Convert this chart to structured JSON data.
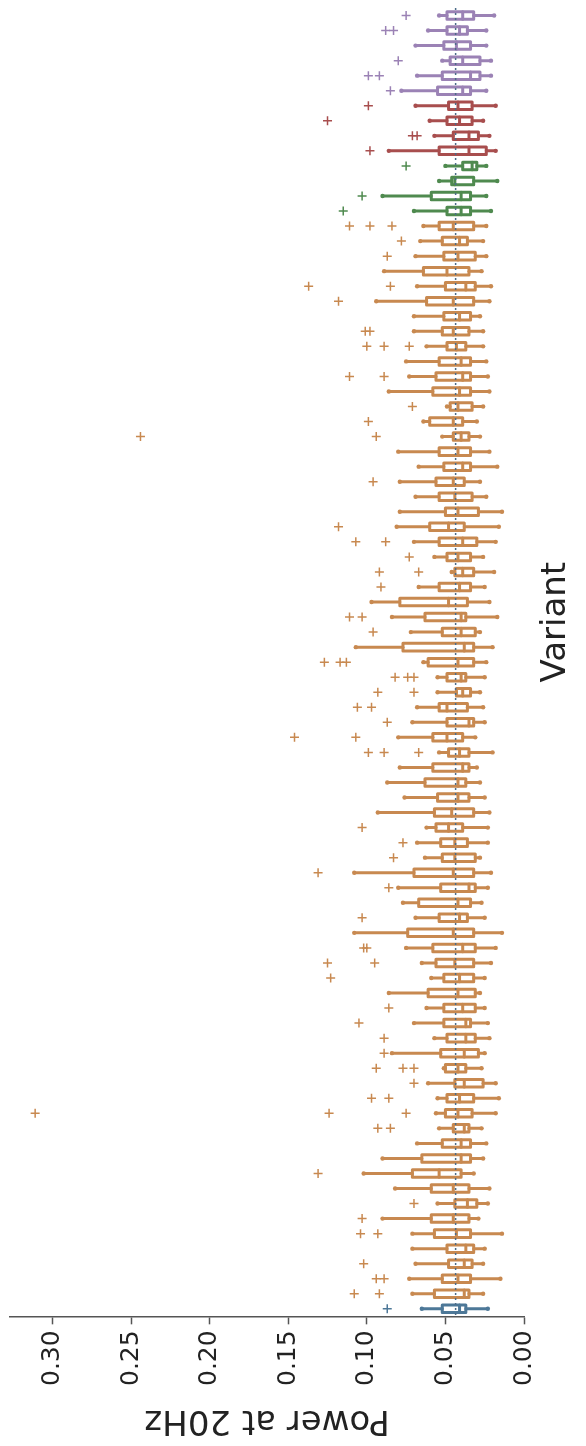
{
  "chart_data": {
    "type": "box",
    "orientation": "horizontal",
    "xlabel": "Power at 20Hz",
    "ylabel": "Variant",
    "tick_labels": "x",
    "marker": "cross",
    "categories": [
      null,
      null,
      null,
      null,
      null,
      null,
      null,
      null,
      null,
      null,
      null,
      null,
      null,
      null,
      null,
      null,
      null,
      null,
      null,
      null,
      null,
      null,
      null,
      null,
      null,
      null,
      null,
      null,
      null,
      null,
      null,
      null,
      null,
      null,
      null,
      null,
      null,
      null,
      null,
      null,
      null,
      null,
      null,
      null,
      null,
      null,
      null,
      null,
      null,
      null,
      null,
      null,
      null,
      null,
      null,
      null,
      null,
      null,
      null,
      null,
      null,
      null,
      null,
      null,
      null,
      null,
      null,
      null,
      null,
      null,
      null,
      null,
      null,
      null,
      null,
      null,
      null,
      null,
      null,
      null,
      null,
      null,
      null,
      null,
      null,
      null,
      null
    ],
    "colors": [
      "#9b82b5",
      "#9b82b5",
      "#9b82b5",
      "#9b82b5",
      "#9b82b5",
      "#9b82b5",
      "#a84e4e",
      "#a84e4e",
      "#a84e4e",
      "#a84e4e",
      "#4f8a4f",
      "#4f8a4f",
      "#4f8a4f",
      "#4f8a4f",
      "#c88950",
      "#c88950",
      "#c88950",
      "#c88950",
      "#c88950",
      "#c88950",
      "#c88950",
      "#c88950",
      "#c88950",
      "#c88950",
      "#c88950",
      "#c88950",
      "#c88950",
      "#c88950",
      "#c88950",
      "#c88950",
      "#c88950",
      "#c88950",
      "#c88950",
      "#c88950",
      "#c88950",
      "#c88950",
      "#c88950",
      "#c88950",
      "#c88950",
      "#c88950",
      "#c88950",
      "#c88950",
      "#c88950",
      "#c88950",
      "#c88950",
      "#c88950",
      "#c88950",
      "#c88950",
      "#c88950",
      "#c88950",
      "#c88950",
      "#c88950",
      "#c88950",
      "#c88950",
      "#c88950",
      "#c88950",
      "#c88950",
      "#c88950",
      "#c88950",
      "#c88950",
      "#c88950",
      "#c88950",
      "#c88950",
      "#c88950",
      "#c88950",
      "#c88950",
      "#c88950",
      "#c88950",
      "#c88950",
      "#c88950",
      "#c88950",
      "#c88950",
      "#c88950",
      "#c88950",
      "#c88950",
      "#c88950",
      "#c88950",
      "#c88950",
      "#c88950",
      "#c88950",
      "#c88950",
      "#c88950",
      "#c88950",
      "#c88950",
      "#c88950",
      "#c88950",
      "#4d7898"
    ],
    "boxes": [
      {
        "low": 0.019,
        "q1": 0.032,
        "median": 0.039,
        "q3": 0.049,
        "high": 0.054,
        "outliers": [
          0.075
        ]
      },
      {
        "low": 0.024,
        "q1": 0.036,
        "median": 0.041,
        "q3": 0.049,
        "high": 0.061,
        "outliers": [
          0.088,
          0.083
        ]
      },
      {
        "low": 0.024,
        "q1": 0.034,
        "median": 0.043,
        "q3": 0.051,
        "high": 0.069
      },
      {
        "low": 0.021,
        "q1": 0.028,
        "median": 0.039,
        "q3": 0.047,
        "high": 0.052,
        "outliers": [
          0.08
        ]
      },
      {
        "low": 0.021,
        "q1": 0.028,
        "median": 0.034,
        "q3": 0.052,
        "high": 0.068,
        "outliers": [
          0.099,
          0.092
        ]
      },
      {
        "low": 0.024,
        "q1": 0.034,
        "median": 0.039,
        "q3": 0.055,
        "high": 0.078,
        "outliers": [
          0.085
        ]
      },
      {
        "low": 0.018,
        "q1": 0.033,
        "median": 0.042,
        "q3": 0.048,
        "high": 0.069,
        "outliers": [
          0.099
        ]
      },
      {
        "low": 0.026,
        "q1": 0.033,
        "median": 0.041,
        "q3": 0.049,
        "high": 0.06,
        "outliers": [
          0.125
        ]
      },
      {
        "low": 0.022,
        "q1": 0.029,
        "median": 0.035,
        "q3": 0.045,
        "high": 0.057,
        "outliers": [
          0.071,
          0.068
        ]
      },
      {
        "low": 0.018,
        "q1": 0.024,
        "median": 0.035,
        "q3": 0.054,
        "high": 0.086,
        "outliers": [
          0.098
        ]
      },
      {
        "low": 0.024,
        "q1": 0.03,
        "median": 0.033,
        "q3": 0.039,
        "high": 0.05,
        "outliers": [
          0.075
        ]
      },
      {
        "low": 0.017,
        "q1": 0.032,
        "median": 0.044,
        "q3": 0.046,
        "high": 0.054
      },
      {
        "low": 0.024,
        "q1": 0.034,
        "median": 0.04,
        "q3": 0.059,
        "high": 0.09,
        "outliers": [
          0.103
        ]
      },
      {
        "low": 0.021,
        "q1": 0.034,
        "median": 0.04,
        "q3": 0.049,
        "high": 0.07,
        "outliers": [
          0.115
        ]
      },
      {
        "low": 0.024,
        "q1": 0.032,
        "median": 0.045,
        "q3": 0.054,
        "high": 0.064,
        "outliers": [
          0.111,
          0.098,
          0.084
        ]
      },
      {
        "low": 0.026,
        "q1": 0.036,
        "median": 0.041,
        "q3": 0.052,
        "high": 0.066,
        "outliers": [
          0.078
        ]
      },
      {
        "low": 0.024,
        "q1": 0.031,
        "median": 0.042,
        "q3": 0.051,
        "high": 0.069,
        "outliers": [
          0.087
        ]
      },
      {
        "low": 0.027,
        "q1": 0.035,
        "median": 0.049,
        "q3": 0.064,
        "high": 0.089
      },
      {
        "low": 0.021,
        "q1": 0.031,
        "median": 0.037,
        "q3": 0.05,
        "high": 0.068,
        "outliers": [
          0.137,
          0.085
        ]
      },
      {
        "low": 0.022,
        "q1": 0.032,
        "median": 0.045,
        "q3": 0.062,
        "high": 0.094,
        "outliers": [
          0.118
        ]
      },
      {
        "low": 0.028,
        "q1": 0.034,
        "median": 0.041,
        "q3": 0.051,
        "high": 0.07
      },
      {
        "low": 0.026,
        "q1": 0.035,
        "median": 0.045,
        "q3": 0.052,
        "high": 0.07,
        "outliers": [
          0.101,
          0.098
        ]
      },
      {
        "low": 0.026,
        "q1": 0.037,
        "median": 0.043,
        "q3": 0.049,
        "high": 0.062,
        "outliers": [
          0.1,
          0.089,
          0.073
        ]
      },
      {
        "low": 0.024,
        "q1": 0.034,
        "median": 0.04,
        "q3": 0.054,
        "high": 0.075
      },
      {
        "low": 0.023,
        "q1": 0.034,
        "median": 0.039,
        "q3": 0.056,
        "high": 0.073,
        "outliers": [
          0.111,
          0.089
        ]
      },
      {
        "low": 0.022,
        "q1": 0.034,
        "median": 0.041,
        "q3": 0.058,
        "high": 0.086
      },
      {
        "low": 0.026,
        "q1": 0.033,
        "median": 0.042,
        "q3": 0.047,
        "high": 0.049,
        "outliers": [
          0.071
        ]
      },
      {
        "low": 0.03,
        "q1": 0.039,
        "median": 0.045,
        "q3": 0.06,
        "high": 0.064,
        "outliers": [
          0.099
        ]
      },
      {
        "low": 0.028,
        "q1": 0.035,
        "median": 0.04,
        "q3": 0.045,
        "high": 0.052,
        "outliers": [
          0.244,
          0.094
        ]
      },
      {
        "low": 0.022,
        "q1": 0.034,
        "median": 0.042,
        "q3": 0.054,
        "high": 0.08
      },
      {
        "low": 0.017,
        "q1": 0.034,
        "median": 0.039,
        "q3": 0.051,
        "high": 0.067
      },
      {
        "low": 0.028,
        "q1": 0.038,
        "median": 0.045,
        "q3": 0.056,
        "high": 0.079,
        "outliers": [
          0.096
        ]
      },
      {
        "low": 0.024,
        "q1": 0.033,
        "median": 0.044,
        "q3": 0.054,
        "high": 0.069
      },
      {
        "low": 0.014,
        "q1": 0.029,
        "median": 0.042,
        "q3": 0.05,
        "high": 0.079
      },
      {
        "low": 0.016,
        "q1": 0.038,
        "median": 0.048,
        "q3": 0.06,
        "high": 0.081,
        "outliers": [
          0.118
        ]
      },
      {
        "low": 0.018,
        "q1": 0.03,
        "median": 0.039,
        "q3": 0.054,
        "high": 0.07,
        "outliers": [
          0.107,
          0.088
        ]
      },
      {
        "low": 0.026,
        "q1": 0.034,
        "median": 0.042,
        "q3": 0.049,
        "high": 0.057,
        "outliers": [
          0.073
        ]
      },
      {
        "low": 0.019,
        "q1": 0.032,
        "median": 0.039,
        "q3": 0.044,
        "high": 0.046,
        "outliers": [
          0.092,
          0.067
        ]
      },
      {
        "low": 0.025,
        "q1": 0.034,
        "median": 0.041,
        "q3": 0.054,
        "high": 0.067,
        "outliers": [
          0.091
        ]
      },
      {
        "low": 0.022,
        "q1": 0.036,
        "median": 0.048,
        "q3": 0.079,
        "high": 0.097
      },
      {
        "low": 0.017,
        "q1": 0.037,
        "median": 0.04,
        "q3": 0.063,
        "high": 0.084,
        "outliers": [
          0.111,
          0.103
        ]
      },
      {
        "low": 0.028,
        "q1": 0.031,
        "median": 0.04,
        "q3": 0.052,
        "high": 0.072,
        "outliers": [
          0.096
        ]
      },
      {
        "low": 0.02,
        "q1": 0.032,
        "median": 0.038,
        "q3": 0.077,
        "high": 0.107
      },
      {
        "low": 0.024,
        "q1": 0.032,
        "median": 0.042,
        "q3": 0.061,
        "high": 0.064,
        "outliers": [
          0.127,
          0.117,
          0.113
        ]
      },
      {
        "low": 0.025,
        "q1": 0.037,
        "median": 0.04,
        "q3": 0.049,
        "high": 0.055,
        "outliers": [
          0.082,
          0.074,
          0.07
        ]
      },
      {
        "low": 0.028,
        "q1": 0.034,
        "median": 0.039,
        "q3": 0.043,
        "high": 0.055,
        "outliers": [
          0.093,
          0.07
        ]
      },
      {
        "low": 0.026,
        "q1": 0.036,
        "median": 0.049,
        "q3": 0.054,
        "high": 0.068,
        "outliers": [
          0.106,
          0.097
        ]
      },
      {
        "low": 0.025,
        "q1": 0.032,
        "median": 0.035,
        "q3": 0.049,
        "high": 0.071,
        "outliers": [
          0.087
        ]
      },
      {
        "low": 0.031,
        "q1": 0.039,
        "median": 0.049,
        "q3": 0.058,
        "high": 0.08,
        "outliers": [
          0.146,
          0.107
        ]
      },
      {
        "low": 0.02,
        "q1": 0.035,
        "median": 0.041,
        "q3": 0.048,
        "high": 0.054,
        "outliers": [
          0.099,
          0.089,
          0.067
        ]
      },
      {
        "low": 0.03,
        "q1": 0.035,
        "median": 0.039,
        "q3": 0.058,
        "high": 0.079
      },
      {
        "low": 0.028,
        "q1": 0.037,
        "median": 0.042,
        "q3": 0.063,
        "high": 0.087
      },
      {
        "low": 0.025,
        "q1": 0.035,
        "median": 0.042,
        "q3": 0.055,
        "high": 0.076
      },
      {
        "low": 0.022,
        "q1": 0.032,
        "median": 0.046,
        "q3": 0.057,
        "high": 0.093
      },
      {
        "low": 0.023,
        "q1": 0.039,
        "median": 0.048,
        "q3": 0.056,
        "high": 0.062,
        "outliers": [
          0.103
        ]
      },
      {
        "low": 0.023,
        "q1": 0.036,
        "median": 0.044,
        "q3": 0.053,
        "high": 0.068,
        "outliers": [
          0.077
        ]
      },
      {
        "low": 0.028,
        "q1": 0.031,
        "median": 0.044,
        "q3": 0.052,
        "high": 0.063,
        "outliers": [
          0.083
        ]
      },
      {
        "low": 0.021,
        "q1": 0.032,
        "median": 0.045,
        "q3": 0.07,
        "high": 0.108,
        "outliers": [
          0.131
        ]
      },
      {
        "low": 0.023,
        "q1": 0.031,
        "median": 0.035,
        "q3": 0.053,
        "high": 0.08,
        "outliers": [
          0.086
        ]
      },
      {
        "low": 0.027,
        "q1": 0.034,
        "median": 0.042,
        "q3": 0.067,
        "high": 0.077
      },
      {
        "low": 0.025,
        "q1": 0.036,
        "median": 0.041,
        "q3": 0.054,
        "high": 0.069,
        "outliers": [
          0.103
        ]
      },
      {
        "low": 0.014,
        "q1": 0.032,
        "median": 0.045,
        "q3": 0.074,
        "high": 0.108
      },
      {
        "low": 0.018,
        "q1": 0.031,
        "median": 0.039,
        "q3": 0.058,
        "high": 0.075,
        "outliers": [
          0.102,
          0.1
        ]
      },
      {
        "low": 0.021,
        "q1": 0.032,
        "median": 0.044,
        "q3": 0.056,
        "high": 0.065,
        "outliers": [
          0.125,
          0.095
        ]
      },
      {
        "low": 0.025,
        "q1": 0.032,
        "median": 0.041,
        "q3": 0.051,
        "high": 0.059,
        "outliers": [
          0.123
        ]
      },
      {
        "low": 0.028,
        "q1": 0.031,
        "median": 0.042,
        "q3": 0.061,
        "high": 0.086
      },
      {
        "low": 0.025,
        "q1": 0.031,
        "median": 0.039,
        "q3": 0.051,
        "high": 0.062,
        "outliers": [
          0.086
        ]
      },
      {
        "low": 0.023,
        "q1": 0.034,
        "median": 0.037,
        "q3": 0.051,
        "high": 0.07,
        "outliers": [
          0.105
        ]
      },
      {
        "low": 0.022,
        "q1": 0.031,
        "median": 0.037,
        "q3": 0.049,
        "high": 0.057,
        "outliers": [
          0.089
        ]
      },
      {
        "low": 0.025,
        "q1": 0.029,
        "median": 0.038,
        "q3": 0.053,
        "high": 0.084,
        "outliers": [
          0.089
        ]
      },
      {
        "low": 0.027,
        "q1": 0.037,
        "median": 0.042,
        "q3": 0.05,
        "high": 0.051,
        "outliers": [
          0.094,
          0.077,
          0.07
        ]
      },
      {
        "low": 0.018,
        "q1": 0.026,
        "median": 0.038,
        "q3": 0.044,
        "high": 0.061,
        "outliers": [
          0.07
        ]
      },
      {
        "low": 0.016,
        "q1": 0.032,
        "median": 0.041,
        "q3": 0.049,
        "high": 0.055,
        "outliers": [
          0.097,
          0.086
        ]
      },
      {
        "low": 0.018,
        "q1": 0.033,
        "median": 0.042,
        "q3": 0.05,
        "high": 0.056,
        "outliers": [
          0.311,
          0.124,
          0.075
        ]
      },
      {
        "low": 0.027,
        "q1": 0.035,
        "median": 0.038,
        "q3": 0.045,
        "high": 0.054,
        "outliers": [
          0.093,
          0.085
        ]
      },
      {
        "low": 0.024,
        "q1": 0.034,
        "median": 0.04,
        "q3": 0.052,
        "high": 0.068
      },
      {
        "low": 0.026,
        "q1": 0.034,
        "median": 0.04,
        "q3": 0.065,
        "high": 0.09
      },
      {
        "low": 0.032,
        "q1": 0.04,
        "median": 0.054,
        "q3": 0.071,
        "high": 0.102,
        "outliers": [
          0.131
        ]
      },
      {
        "low": 0.022,
        "q1": 0.035,
        "median": 0.045,
        "q3": 0.059,
        "high": 0.082
      },
      {
        "low": 0.023,
        "q1": 0.03,
        "median": 0.036,
        "q3": 0.044,
        "high": 0.055,
        "outliers": [
          0.07
        ]
      },
      {
        "low": 0.029,
        "q1": 0.035,
        "median": 0.045,
        "q3": 0.059,
        "high": 0.09,
        "outliers": [
          0.103
        ]
      },
      {
        "low": 0.014,
        "q1": 0.034,
        "median": 0.043,
        "q3": 0.057,
        "high": 0.071,
        "outliers": [
          0.104,
          0.093
        ]
      },
      {
        "low": 0.025,
        "q1": 0.032,
        "median": 0.037,
        "q3": 0.049,
        "high": 0.071
      },
      {
        "low": 0.026,
        "q1": 0.033,
        "median": 0.038,
        "q3": 0.048,
        "high": 0.069,
        "outliers": [
          0.102
        ]
      },
      {
        "low": 0.015,
        "q1": 0.034,
        "median": 0.042,
        "q3": 0.052,
        "high": 0.073,
        "outliers": [
          0.094,
          0.089
        ]
      },
      {
        "low": 0.026,
        "q1": 0.035,
        "median": 0.038,
        "q3": 0.057,
        "high": 0.071,
        "outliers": [
          0.108,
          0.092
        ]
      },
      {
        "low": 0.023,
        "q1": 0.037,
        "median": 0.041,
        "q3": 0.052,
        "high": 0.065,
        "outliers": [
          0.087
        ]
      }
    ],
    "xlim": [
      0.327,
      0
    ],
    "xticks": [
      {
        "value": 0.3,
        "label": "0.30"
      },
      {
        "value": 0.25,
        "label": "0.25"
      },
      {
        "value": 0.2,
        "label": "0.20"
      },
      {
        "value": 0.15,
        "label": "0.15"
      },
      {
        "value": 0.1,
        "label": "0.10"
      },
      {
        "value": 0.05,
        "label": "0.05"
      },
      {
        "value": 0,
        "label": "0.00"
      }
    ],
    "ref_lines": [
      {
        "axis": "x",
        "value": 0.0435,
        "color": "#4b6b88",
        "line_style": "dotted"
      }
    ]
  }
}
